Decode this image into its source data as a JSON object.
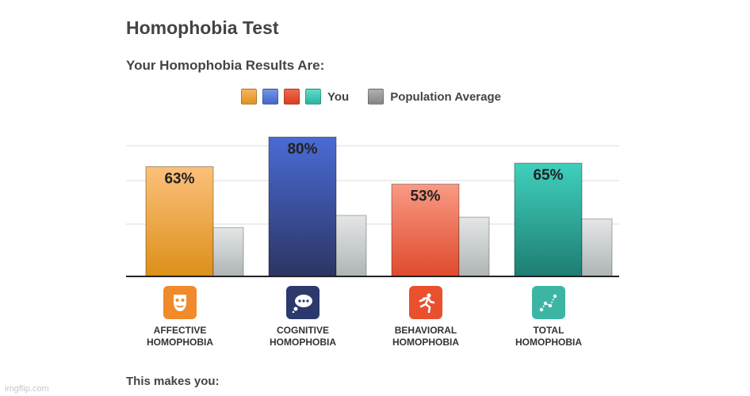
{
  "header": {
    "title": "Homophobia Test",
    "subtitle": "Your Homophobia Results Are:"
  },
  "legend": {
    "you_label": "You",
    "avg_label": "Population Average",
    "you_colors": [
      "#f0a030",
      "#5b7fd9",
      "#e85035",
      "#3fc7b4"
    ],
    "avg_color": "#9a9a9a"
  },
  "chart_data": {
    "type": "bar",
    "categories": [
      "AFFECTIVE HOMOPHOBIA",
      "COGNITIVE HOMOPHOBIA",
      "BEHAVIORAL HOMOPHOBIA",
      "TOTAL HOMOPHOBIA"
    ],
    "series": [
      {
        "name": "You",
        "values": [
          63,
          80,
          53,
          65
        ],
        "labels": [
          "63%",
          "80%",
          "53%",
          "65%"
        ]
      },
      {
        "name": "Population Average",
        "values": [
          28,
          35,
          34,
          33
        ]
      }
    ],
    "ylim": [
      0,
      100
    ],
    "grid": true,
    "legend_position": "top"
  },
  "categories": [
    {
      "line1": "AFFECTIVE",
      "line2": "HOMOPHOBIA",
      "icon": "theater-mask-icon",
      "color": "#f08a2a"
    },
    {
      "line1": "COGNITIVE",
      "line2": "HOMOPHOBIA",
      "icon": "thought-bubble-icon",
      "color": "#2b3a6b"
    },
    {
      "line1": "BEHAVIORAL",
      "line2": "HOMOPHOBIA",
      "icon": "running-person-icon",
      "color": "#e8502e"
    },
    {
      "line1": "TOTAL",
      "line2": "HOMOPHOBIA",
      "icon": "scatter-plot-icon",
      "color": "#3db5a5"
    }
  ],
  "footer": {
    "text": "This makes you:"
  },
  "watermark": {
    "text": "imgflip.com"
  }
}
